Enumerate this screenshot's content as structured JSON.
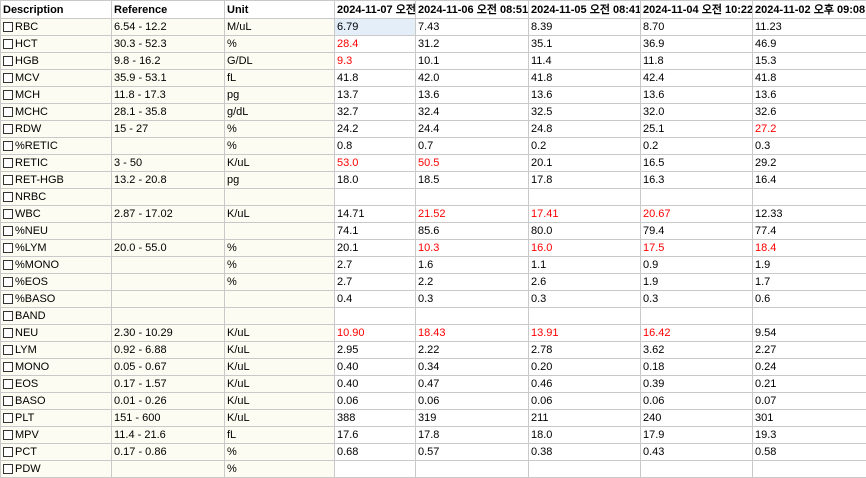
{
  "headers": {
    "description": "Description",
    "reference": "Reference",
    "unit": "Unit",
    "dates": [
      "2024-11-07 오전",
      "2024-11-06 오전 08:51",
      "2024-11-05 오전 08:41",
      "2024-11-04 오전 10:22",
      "2024-11-02 오후 09:08"
    ]
  },
  "colors": {
    "abnormal": "#ff0000",
    "selected_cell": "#e3eef9",
    "label_cell": "#fcfcf2",
    "grid": "#c9c9c9"
  },
  "rows": [
    {
      "desc": "RBC",
      "ref": "6.54 - 12.2",
      "unit": "M/uL",
      "values": [
        "6.79",
        "7.43",
        "8.39",
        "8.70",
        "11.23"
      ],
      "abnormal": [
        false,
        false,
        false,
        false,
        false
      ]
    },
    {
      "desc": "HCT",
      "ref": "30.3 - 52.3",
      "unit": "%",
      "values": [
        "28.4",
        "31.2",
        "35.1",
        "36.9",
        "46.9"
      ],
      "abnormal": [
        true,
        false,
        false,
        false,
        false
      ]
    },
    {
      "desc": "HGB",
      "ref": "9.8 - 16.2",
      "unit": "G/DL",
      "values": [
        "9.3",
        "10.1",
        "11.4",
        "11.8",
        "15.3"
      ],
      "abnormal": [
        true,
        false,
        false,
        false,
        false
      ]
    },
    {
      "desc": "MCV",
      "ref": "35.9 - 53.1",
      "unit": "fL",
      "values": [
        "41.8",
        "42.0",
        "41.8",
        "42.4",
        "41.8"
      ],
      "abnormal": [
        false,
        false,
        false,
        false,
        false
      ]
    },
    {
      "desc": "MCH",
      "ref": "11.8 - 17.3",
      "unit": "pg",
      "values": [
        "13.7",
        "13.6",
        "13.6",
        "13.6",
        "13.6"
      ],
      "abnormal": [
        false,
        false,
        false,
        false,
        false
      ]
    },
    {
      "desc": "MCHC",
      "ref": "28.1 - 35.8",
      "unit": "g/dL",
      "values": [
        "32.7",
        "32.4",
        "32.5",
        "32.0",
        "32.6"
      ],
      "abnormal": [
        false,
        false,
        false,
        false,
        false
      ]
    },
    {
      "desc": "RDW",
      "ref": "15 - 27",
      "unit": "%",
      "values": [
        "24.2",
        "24.4",
        "24.8",
        "25.1",
        "27.2"
      ],
      "abnormal": [
        false,
        false,
        false,
        false,
        true
      ]
    },
    {
      "desc": "%RETIC",
      "ref": "",
      "unit": "%",
      "values": [
        "0.8",
        "0.7",
        "0.2",
        "0.2",
        "0.3"
      ],
      "abnormal": [
        false,
        false,
        false,
        false,
        false
      ]
    },
    {
      "desc": "RETIC",
      "ref": "3 - 50",
      "unit": "K/uL",
      "values": [
        "53.0",
        "50.5",
        "20.1",
        "16.5",
        "29.2"
      ],
      "abnormal": [
        true,
        true,
        false,
        false,
        false
      ]
    },
    {
      "desc": "RET-HGB",
      "ref": "13.2 - 20.8",
      "unit": "pg",
      "values": [
        "18.0",
        "18.5",
        "17.8",
        "16.3",
        "16.4"
      ],
      "abnormal": [
        false,
        false,
        false,
        false,
        false
      ]
    },
    {
      "desc": "NRBC",
      "ref": "",
      "unit": "",
      "values": [
        "",
        "",
        "",
        "",
        ""
      ],
      "abnormal": [
        false,
        false,
        false,
        false,
        false
      ]
    },
    {
      "desc": "WBC",
      "ref": "2.87 - 17.02",
      "unit": "K/uL",
      "values": [
        "14.71",
        "21.52",
        "17.41",
        "20.67",
        "12.33"
      ],
      "abnormal": [
        false,
        true,
        true,
        true,
        false
      ]
    },
    {
      "desc": "%NEU",
      "ref": "",
      "unit": "",
      "values": [
        "74.1",
        "85.6",
        "80.0",
        "79.4",
        "77.4"
      ],
      "abnormal": [
        false,
        false,
        false,
        false,
        false
      ]
    },
    {
      "desc": "%LYM",
      "ref": "20.0 - 55.0",
      "unit": "%",
      "values": [
        "20.1",
        "10.3",
        "16.0",
        "17.5",
        "18.4"
      ],
      "abnormal": [
        false,
        true,
        true,
        true,
        true
      ]
    },
    {
      "desc": "%MONO",
      "ref": "",
      "unit": "%",
      "values": [
        "2.7",
        "1.6",
        "1.1",
        "0.9",
        "1.9"
      ],
      "abnormal": [
        false,
        false,
        false,
        false,
        false
      ]
    },
    {
      "desc": "%EOS",
      "ref": "",
      "unit": "%",
      "values": [
        "2.7",
        "2.2",
        "2.6",
        "1.9",
        "1.7"
      ],
      "abnormal": [
        false,
        false,
        false,
        false,
        false
      ]
    },
    {
      "desc": "%BASO",
      "ref": "",
      "unit": "",
      "values": [
        "0.4",
        "0.3",
        "0.3",
        "0.3",
        "0.6"
      ],
      "abnormal": [
        false,
        false,
        false,
        false,
        false
      ]
    },
    {
      "desc": "BAND",
      "ref": "",
      "unit": "",
      "values": [
        "",
        "",
        "",
        "",
        ""
      ],
      "abnormal": [
        false,
        false,
        false,
        false,
        false
      ]
    },
    {
      "desc": "NEU",
      "ref": "2.30 - 10.29",
      "unit": "K/uL",
      "values": [
        "10.90",
        "18.43",
        "13.91",
        "16.42",
        "9.54"
      ],
      "abnormal": [
        true,
        true,
        true,
        true,
        false
      ]
    },
    {
      "desc": "LYM",
      "ref": "0.92 - 6.88",
      "unit": "K/uL",
      "values": [
        "2.95",
        "2.22",
        "2.78",
        "3.62",
        "2.27"
      ],
      "abnormal": [
        false,
        false,
        false,
        false,
        false
      ]
    },
    {
      "desc": "MONO",
      "ref": "0.05 - 0.67",
      "unit": "K/uL",
      "values": [
        "0.40",
        "0.34",
        "0.20",
        "0.18",
        "0.24"
      ],
      "abnormal": [
        false,
        false,
        false,
        false,
        false
      ]
    },
    {
      "desc": "EOS",
      "ref": "0.17 - 1.57",
      "unit": "K/uL",
      "values": [
        "0.40",
        "0.47",
        "0.46",
        "0.39",
        "0.21"
      ],
      "abnormal": [
        false,
        false,
        false,
        false,
        false
      ]
    },
    {
      "desc": "BASO",
      "ref": "0.01 - 0.26",
      "unit": "K/uL",
      "values": [
        "0.06",
        "0.06",
        "0.06",
        "0.06",
        "0.07"
      ],
      "abnormal": [
        false,
        false,
        false,
        false,
        false
      ]
    },
    {
      "desc": "PLT",
      "ref": "151 - 600",
      "unit": "K/uL",
      "values": [
        "388",
        "319",
        "211",
        "240",
        "301"
      ],
      "abnormal": [
        false,
        false,
        false,
        false,
        false
      ]
    },
    {
      "desc": "MPV",
      "ref": "11.4 - 21.6",
      "unit": "fL",
      "values": [
        "17.6",
        "17.8",
        "18.0",
        "17.9",
        "19.3"
      ],
      "abnormal": [
        false,
        false,
        false,
        false,
        false
      ]
    },
    {
      "desc": "PCT",
      "ref": "0.17 - 0.86",
      "unit": "%",
      "values": [
        "0.68",
        "0.57",
        "0.38",
        "0.43",
        "0.58"
      ],
      "abnormal": [
        false,
        false,
        false,
        false,
        false
      ]
    },
    {
      "desc": "PDW",
      "ref": "",
      "unit": "%",
      "values": [
        "",
        "",
        "",
        "",
        ""
      ],
      "abnormal": [
        false,
        false,
        false,
        false,
        false
      ]
    }
  ]
}
